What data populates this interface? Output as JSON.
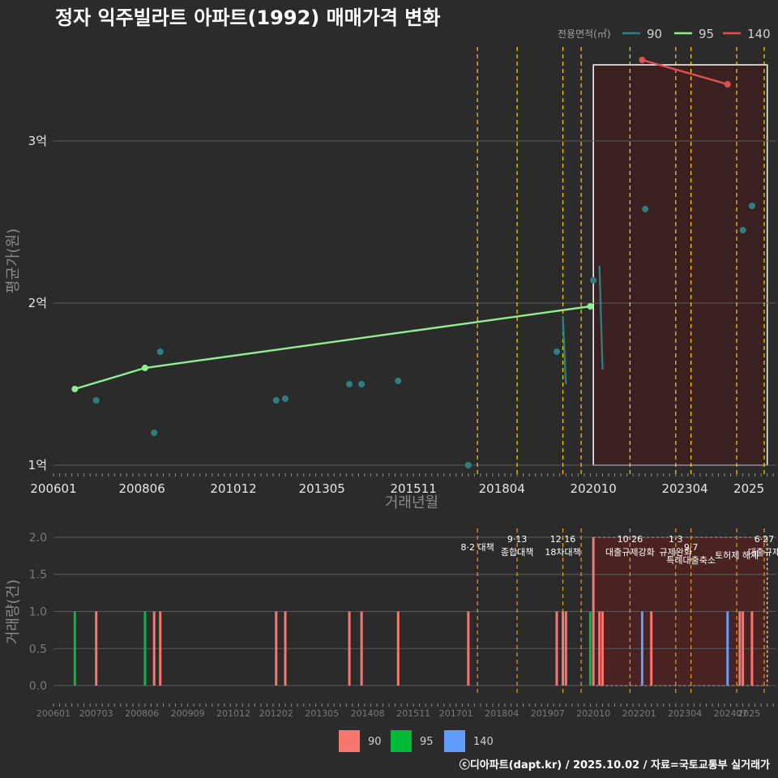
{
  "chart_data": {
    "title": "정자 익주빌라트 아파트(1992) 매매가격 변화",
    "legend_title": "전용면적(㎡)",
    "legend_placement": "top-right",
    "colors": {
      "90": "#2e7f7f",
      "95": "#90ee90",
      "140": "#e05050",
      "bar90": "#f8766d",
      "bar95": "#00ba38",
      "bar140": "#619cff",
      "policy": "#ffd700",
      "highlight": "#3a2020"
    },
    "price_chart": {
      "type": "line",
      "xlabel": "거래년월",
      "ylabel": "평균가(원)",
      "y_ticks": [
        {
          "v": 1,
          "label": "1억"
        },
        {
          "v": 2,
          "label": "2억"
        },
        {
          "v": 3,
          "label": "3억"
        }
      ],
      "x_ticks": [
        "200601",
        "200806",
        "201012",
        "201305",
        "201511",
        "201804",
        "202010",
        "202304",
        "2025"
      ],
      "ylim": [
        0.93,
        3.58
      ],
      "series": [
        {
          "name": "90",
          "points": [
            {
              "x": "200703",
              "y": 1.4
            },
            {
              "x": "200810",
              "y": 1.2
            },
            {
              "x": "200812",
              "y": 1.7
            },
            {
              "x": "201202",
              "y": 1.4
            },
            {
              "x": "201205",
              "y": 1.41
            },
            {
              "x": "201402",
              "y": 1.5
            },
            {
              "x": "201406",
              "y": 1.5
            },
            {
              "x": "201506",
              "y": 1.52
            },
            {
              "x": "201705",
              "y": 1.0
            },
            {
              "x": "201910",
              "y": 1.7
            },
            {
              "x": "202010",
              "y": 2.14
            },
            {
              "x": "202203",
              "y": 2.58
            },
            {
              "x": "202411",
              "y": 2.45
            },
            {
              "x": "202502",
              "y": 2.6
            }
          ],
          "lines": [
            [
              {
                "x": "201912",
                "y": 1.92
              },
              {
                "x": "202001",
                "y": 1.5
              }
            ],
            [
              {
                "x": "202012",
                "y": 2.23
              },
              {
                "x": "202101",
                "y": 1.59
              }
            ]
          ]
        },
        {
          "name": "95",
          "points": [
            {
              "x": "200608",
              "y": 1.47
            },
            {
              "x": "200807",
              "y": 1.6
            },
            {
              "x": "202009",
              "y": 1.98
            }
          ],
          "lines": [
            [
              {
                "x": "200608",
                "y": 1.47
              },
              {
                "x": "200807",
                "y": 1.6
              },
              {
                "x": "202009",
                "y": 1.98
              }
            ]
          ]
        },
        {
          "name": "140",
          "points": [
            {
              "x": "202202",
              "y": 3.5
            },
            {
              "x": "202406",
              "y": 3.35
            }
          ],
          "lines": [
            [
              {
                "x": "202202",
                "y": 3.5
              },
              {
                "x": "202406",
                "y": 3.35
              }
            ]
          ]
        }
      ]
    },
    "volume_chart": {
      "type": "bar",
      "ylabel": "거래량(건)",
      "y_ticks": [
        {
          "v": 0,
          "label": "0.0"
        },
        {
          "v": 0.5,
          "label": "0.5"
        },
        {
          "v": 1,
          "label": "1.0"
        },
        {
          "v": 1.5,
          "label": "1.5"
        },
        {
          "v": 2,
          "label": "2.0"
        }
      ],
      "ylim": [
        -0.12,
        2.12
      ],
      "x_ticks": [
        "200601",
        "200703",
        "200806",
        "200909",
        "201012",
        "201202",
        "201305",
        "201408",
        "201511",
        "201701",
        "201804",
        "201907",
        "202010",
        "202201",
        "202304",
        "202407",
        "2025"
      ],
      "bars": [
        {
          "x": "200608",
          "v": 1,
          "s": "95"
        },
        {
          "x": "200703",
          "v": 1,
          "s": "90"
        },
        {
          "x": "200807",
          "v": 1,
          "s": "95"
        },
        {
          "x": "200810",
          "v": 1,
          "s": "90"
        },
        {
          "x": "200812",
          "v": 1,
          "s": "90"
        },
        {
          "x": "201202",
          "v": 1,
          "s": "90"
        },
        {
          "x": "201205",
          "v": 1,
          "s": "90"
        },
        {
          "x": "201402",
          "v": 1,
          "s": "90"
        },
        {
          "x": "201406",
          "v": 1,
          "s": "90"
        },
        {
          "x": "201506",
          "v": 1,
          "s": "90"
        },
        {
          "x": "201705",
          "v": 1,
          "s": "90"
        },
        {
          "x": "201910",
          "v": 1,
          "s": "90"
        },
        {
          "x": "201912",
          "v": 1,
          "s": "90"
        },
        {
          "x": "202001",
          "v": 1,
          "s": "90"
        },
        {
          "x": "202009",
          "v": 1,
          "s": "95"
        },
        {
          "x": "202010",
          "v": 2,
          "s": "90"
        },
        {
          "x": "202012",
          "v": 1,
          "s": "90"
        },
        {
          "x": "202101",
          "v": 1,
          "s": "90"
        },
        {
          "x": "202202",
          "v": 1,
          "s": "140"
        },
        {
          "x": "202205",
          "v": 1,
          "s": "90"
        },
        {
          "x": "202406",
          "v": 1,
          "s": "140"
        },
        {
          "x": "202410",
          "v": 1,
          "s": "90"
        },
        {
          "x": "202411",
          "v": 1,
          "s": "90"
        },
        {
          "x": "202502",
          "v": 1,
          "s": "90"
        }
      ]
    },
    "policy_lines": [
      "201708",
      "201809",
      "201912",
      "202006",
      "202110",
      "202301",
      "202306",
      "202409",
      "202506"
    ],
    "highlight": {
      "start": "202010",
      "end": "202507"
    },
    "annotations": [
      {
        "x": "201708",
        "lines": [
          "8·2 대책"
        ],
        "row": 1
      },
      {
        "x": "201809",
        "lines": [
          "9·13",
          "종합대책"
        ],
        "row": 0
      },
      {
        "x": "201912",
        "lines": [
          "12·16",
          "18차대책"
        ],
        "row": 0
      },
      {
        "x": "202110",
        "lines": [
          "10·26",
          "대출규제강화"
        ],
        "row": 0
      },
      {
        "x": "202301",
        "lines": [
          "1·3",
          "규제완화"
        ],
        "row": 0
      },
      {
        "x": "202306",
        "lines": [
          "9·7",
          "특례대출축소"
        ],
        "row": 1
      },
      {
        "x": "202409",
        "lines": [
          "토허제 해제"
        ],
        "row": 2
      },
      {
        "x": "202506",
        "lines": [
          "6·27",
          "대출규제"
        ],
        "row": 0
      }
    ],
    "bar_legend": [
      {
        "name": "90"
      },
      {
        "name": "95"
      },
      {
        "name": "140"
      }
    ],
    "footer": "ⓒ디아파트(dapt.kr) / 2025.10.02 / 자료=국토교통부 실거래가"
  }
}
